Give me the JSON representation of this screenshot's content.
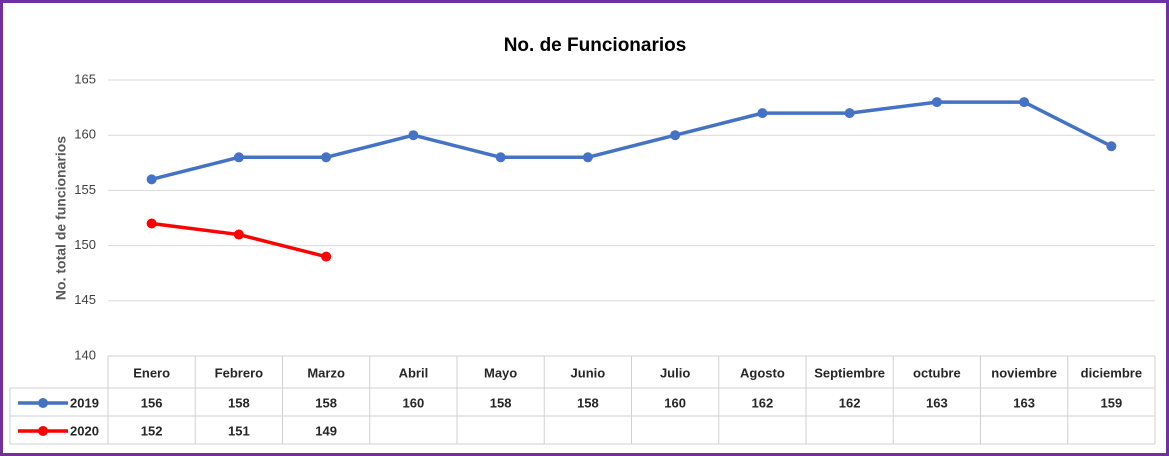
{
  "chart_data": {
    "type": "line",
    "title": "No. de Funcionarios",
    "y_label": "No. total de funcionarios",
    "categories": [
      "Enero",
      "Febrero",
      "Marzo",
      "Abril",
      "Mayo",
      "Junio",
      "Julio",
      "Agosto",
      "Septiembre",
      "octubre",
      "noviembre",
      "diciembre"
    ],
    "series": [
      {
        "name": "2019",
        "color": "#4472c4",
        "values": [
          156,
          158,
          158,
          160,
          158,
          158,
          160,
          162,
          162,
          163,
          163,
          159
        ]
      },
      {
        "name": "2020",
        "color": "#ff0000",
        "values": [
          152,
          151,
          149,
          null,
          null,
          null,
          null,
          null,
          null,
          null,
          null,
          null
        ]
      }
    ],
    "ylim": [
      140,
      165
    ],
    "yticks": [
      140,
      145,
      150,
      155,
      160,
      165
    ],
    "grid": true,
    "data_table": true
  }
}
